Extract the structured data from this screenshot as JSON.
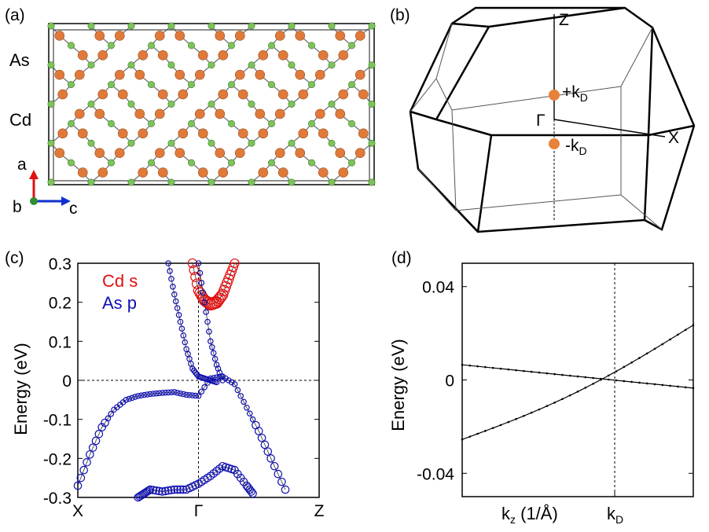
{
  "panels": {
    "a": {
      "label": "(a)",
      "element_labels": [
        "As",
        "Cd"
      ],
      "axes_labels": {
        "a": "a",
        "b": "b",
        "c": "c"
      },
      "colors": {
        "As": "#7cc35a",
        "Cd": "#e07a3a",
        "bond": "#707070",
        "axis_a": "#e01010",
        "axis_c": "#1030d0",
        "axis_b": "#2f8f2f"
      }
    },
    "b": {
      "label": "(b)",
      "point_labels": {
        "Z": "Z",
        "Gamma": "Γ",
        "X": "X",
        "plus_k": "+k",
        "minus_k": "-k",
        "sub": "D"
      },
      "colors": {
        "weyl_point": "#e8823a"
      }
    }
  },
  "chart_data": [
    {
      "panel": "(c)",
      "type": "scatter",
      "title": "",
      "ylabel": "Energy (eV)",
      "xlabel": "",
      "ylim": [
        -0.3,
        0.3
      ],
      "yticks": [
        "0.3",
        "0.2",
        "0.1",
        "0",
        "-0.1",
        "-0.2",
        "-0.3"
      ],
      "xticks": [
        "X",
        "Γ",
        "Z"
      ],
      "legend": [
        "Cd s",
        "As p"
      ],
      "legend_placement": "top-left",
      "colors": {
        "Cd s": "#e01010",
        "As p": "#1010b0"
      },
      "bands": [
        {
          "name": "As p",
          "points": [
            [
              0.0,
              -0.27
            ],
            [
              0.1,
              -0.19
            ],
            [
              0.2,
              -0.12
            ],
            [
              0.3,
              -0.075
            ],
            [
              0.4,
              -0.05
            ],
            [
              0.5,
              -0.04
            ],
            [
              0.6,
              -0.035
            ],
            [
              0.7,
              -0.032
            ],
            [
              0.8,
              -0.03
            ],
            [
              0.9,
              -0.037
            ],
            [
              1.0,
              -0.04
            ],
            [
              1.1,
              0.005
            ],
            [
              1.2,
              0.01
            ],
            [
              1.3,
              -0.01
            ],
            [
              1.4,
              -0.07
            ],
            [
              1.5,
              -0.13
            ],
            [
              1.6,
              -0.2
            ],
            [
              1.72,
              -0.28
            ]
          ]
        },
        {
          "name": "As p",
          "points": [
            [
              0.75,
              0.3
            ],
            [
              0.8,
              0.22
            ],
            [
              0.85,
              0.15
            ],
            [
              0.9,
              0.08
            ],
            [
              0.95,
              0.03
            ],
            [
              1.0,
              0.01
            ],
            [
              1.05,
              0.005
            ],
            [
              1.1,
              0.0
            ],
            [
              1.15,
              -0.005
            ]
          ]
        },
        {
          "name": "Cd s",
          "points": [
            [
              0.95,
              0.3
            ],
            [
              1.0,
              0.23
            ],
            [
              1.05,
              0.205
            ],
            [
              1.1,
              0.195
            ],
            [
              1.15,
              0.2
            ],
            [
              1.2,
              0.22
            ],
            [
              1.25,
              0.26
            ],
            [
              1.3,
              0.3
            ]
          ]
        },
        {
          "name": "As p",
          "points": [
            [
              1.0,
              0.3
            ],
            [
              1.05,
              0.2
            ],
            [
              1.1,
              0.1
            ],
            [
              1.15,
              0.04
            ],
            [
              1.2,
              0.0
            ]
          ]
        },
        {
          "name": "As p",
          "points": [
            [
              0.5,
              -0.3
            ],
            [
              0.55,
              -0.29
            ],
            [
              0.6,
              -0.28
            ],
            [
              0.7,
              -0.285
            ],
            [
              0.8,
              -0.28
            ],
            [
              0.9,
              -0.28
            ],
            [
              1.0,
              -0.265
            ],
            [
              1.1,
              -0.245
            ],
            [
              1.2,
              -0.22
            ],
            [
              1.3,
              -0.23
            ],
            [
              1.4,
              -0.27
            ],
            [
              1.45,
              -0.29
            ]
          ]
        }
      ]
    },
    {
      "panel": "(d)",
      "type": "line",
      "title": "",
      "ylabel": "Energy (eV)",
      "xlabel": "k",
      "xlabel_sub": "z",
      "xlabel_units": " (1/Å)",
      "k_label": "k",
      "k_label_sub": "D",
      "ylim": [
        -0.05,
        0.05
      ],
      "yticks": [
        "0.04",
        "0",
        "-0.04"
      ],
      "series": [
        {
          "x": [
            0,
            1
          ],
          "y": [
            0.0065,
            -0.0035
          ]
        },
        {
          "x": [
            0,
            1
          ],
          "y": [
            -0.0255,
            0.0235
          ]
        }
      ],
      "kD_x": 0.66
    }
  ]
}
